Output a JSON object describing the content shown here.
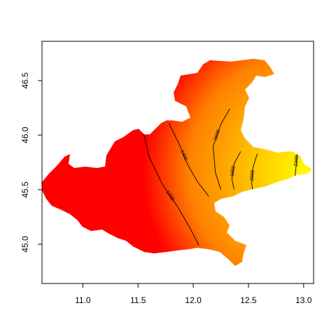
{
  "chart_data": {
    "type": "heatmap",
    "title": "",
    "xlabel": "",
    "ylabel": "",
    "xlim": [
      10.63,
      13.09
    ],
    "ylim": [
      44.64,
      46.86
    ],
    "x_ticks": [
      11.0,
      11.5,
      12.0,
      12.5,
      13.0
    ],
    "x_tick_labels": [
      "11.0",
      "11.5",
      "12.0",
      "12.5",
      "13.0"
    ],
    "y_ticks": [
      45.0,
      45.5,
      46.0,
      46.5
    ],
    "y_tick_labels": [
      "45.0",
      "45.5",
      "46.0",
      "46.5"
    ],
    "grid": false,
    "colormap": [
      "#ff0000",
      "#ff8000",
      "#ffff00"
    ],
    "contours": [
      {
        "label": "1200",
        "line": [
          [
            11.55,
            46.02
          ],
          [
            11.6,
            45.8
          ],
          [
            11.72,
            45.55
          ],
          [
            11.86,
            45.34
          ],
          [
            11.97,
            45.15
          ],
          [
            12.05,
            44.99
          ]
        ]
      },
      {
        "label": "1400",
        "line": [
          [
            11.78,
            46.11
          ],
          [
            11.88,
            45.9
          ],
          [
            11.95,
            45.73
          ],
          [
            12.04,
            45.57
          ],
          [
            12.14,
            45.44
          ]
        ]
      },
      {
        "label": "1600",
        "line": [
          [
            12.33,
            46.24
          ],
          [
            12.25,
            46.1
          ],
          [
            12.18,
            45.9
          ],
          [
            12.2,
            45.66
          ],
          [
            12.25,
            45.5
          ]
        ]
      },
      {
        "label": "1800",
        "line": [
          [
            12.43,
            45.85
          ],
          [
            12.37,
            45.74
          ],
          [
            12.35,
            45.6
          ],
          [
            12.37,
            45.5
          ]
        ]
      },
      {
        "label": "2000",
        "line": [
          [
            12.58,
            45.83
          ],
          [
            12.54,
            45.7
          ],
          [
            12.53,
            45.56
          ],
          [
            12.54,
            45.47
          ]
        ]
      },
      {
        "label": "2200",
        "line": [
          [
            12.94,
            45.83
          ],
          [
            12.93,
            45.7
          ],
          [
            12.92,
            45.6
          ]
        ]
      }
    ]
  }
}
